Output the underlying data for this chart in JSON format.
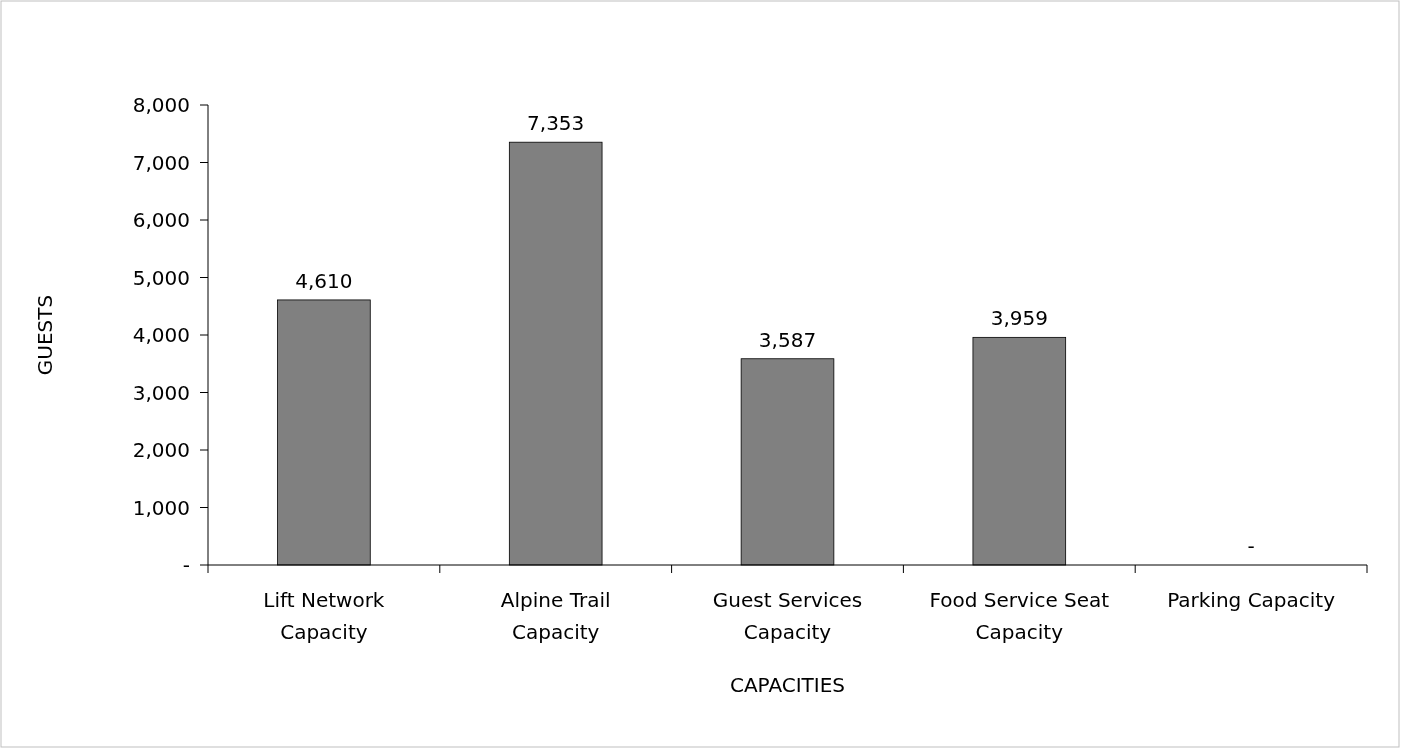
{
  "chart_data": {
    "type": "bar",
    "xlabel": "CAPACITIES",
    "ylabel": "GUESTS",
    "categories": [
      "Lift Network Capacity",
      "Alpine Trail Capacity",
      "Guest Services Capacity",
      "Food Service Seat Capacity",
      "Parking Capacity"
    ],
    "values": [
      4610,
      7353,
      3587,
      3959,
      0
    ],
    "value_labels": [
      "4,610",
      "7,353",
      "3,587",
      "3,959",
      "-"
    ],
    "color": "#808080",
    "ylim": [
      0,
      8000
    ],
    "yticks": [
      {
        "value": 0,
        "label": "-"
      },
      {
        "value": 1000,
        "label": "1,000"
      },
      {
        "value": 2000,
        "label": "2,000"
      },
      {
        "value": 3000,
        "label": "3,000"
      },
      {
        "value": 4000,
        "label": "4,000"
      },
      {
        "value": 5000,
        "label": "5,000"
      },
      {
        "value": 6000,
        "label": "6,000"
      },
      {
        "value": 7000,
        "label": "7,000"
      },
      {
        "value": 8000,
        "label": "8,000"
      }
    ],
    "grid": false
  }
}
